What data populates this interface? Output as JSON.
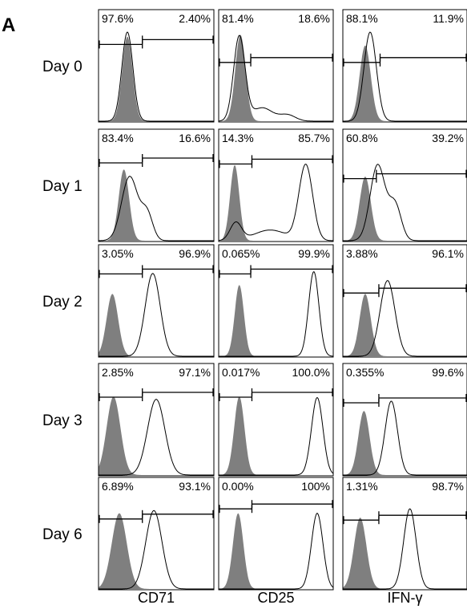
{
  "figure": {
    "panel_letter": "A",
    "rows": [
      "Day 0",
      "Day 1",
      "Day 2",
      "Day 3",
      "Day 6"
    ],
    "columns": [
      "CD71",
      "CD25",
      "IFN-γ"
    ]
  },
  "chart_data": {
    "type": "area",
    "title": "",
    "rows": [
      "Day 0",
      "Day 1",
      "Day 2",
      "Day 3",
      "Day 6"
    ],
    "columns": [
      "CD71",
      "CD25",
      "IFN-γ"
    ],
    "panels": [
      {
        "row": "Day 0",
        "column": "CD71",
        "left_percent": "97.6%",
        "right_percent": "2.40%",
        "gate_y": 0.31,
        "gate_split": 0.38,
        "control": {
          "mu": 0.25,
          "sigma": 0.045,
          "h": 0.95
        },
        "stained": [
          {
            "mu": 0.25,
            "sigma": 0.048,
            "h": 1.0
          }
        ]
      },
      {
        "row": "Day 0",
        "column": "CD25",
        "left_percent": "81.4%",
        "right_percent": "18.6%",
        "gate_y": 0.47,
        "gate_split": 0.28,
        "control": {
          "mu": 0.19,
          "sigma": 0.045,
          "h": 0.97
        },
        "stained": [
          {
            "mu": 0.18,
            "sigma": 0.05,
            "h": 0.95
          },
          {
            "mu": 0.38,
            "sigma": 0.09,
            "h": 0.15
          },
          {
            "mu": 0.6,
            "sigma": 0.07,
            "h": 0.07
          }
        ]
      },
      {
        "row": "Day 0",
        "column": "IFN-γ",
        "left_percent": "88.1%",
        "right_percent": "11.9%",
        "gate_y": 0.47,
        "gate_split": 0.3,
        "control": {
          "mu": 0.18,
          "sigma": 0.045,
          "h": 0.85
        },
        "stained": [
          {
            "mu": 0.22,
            "sigma": 0.05,
            "h": 1.0
          }
        ]
      },
      {
        "row": "Day 1",
        "column": "CD71",
        "left_percent": "83.4%",
        "right_percent": "16.6%",
        "gate_y": 0.3,
        "gate_split": 0.38,
        "control": {
          "mu": 0.22,
          "sigma": 0.045,
          "h": 0.8
        },
        "stained": [
          {
            "mu": 0.27,
            "sigma": 0.07,
            "h": 0.72
          },
          {
            "mu": 0.42,
            "sigma": 0.05,
            "h": 0.3
          }
        ]
      },
      {
        "row": "Day 1",
        "column": "CD25",
        "left_percent": "14.3%",
        "right_percent": "85.7%",
        "gate_y": 0.31,
        "gate_split": 0.29,
        "control": {
          "mu": 0.14,
          "sigma": 0.04,
          "h": 0.85
        },
        "stained": [
          {
            "mu": 0.15,
            "sigma": 0.05,
            "h": 0.2
          },
          {
            "mu": 0.45,
            "sigma": 0.14,
            "h": 0.12
          },
          {
            "mu": 0.76,
            "sigma": 0.06,
            "h": 0.85
          }
        ]
      },
      {
        "row": "Day 1",
        "column": "IFN-γ",
        "left_percent": "60.8%",
        "right_percent": "39.2%",
        "gate_y": 0.44,
        "gate_split": 0.27,
        "control": {
          "mu": 0.18,
          "sigma": 0.045,
          "h": 0.72
        },
        "stained": [
          {
            "mu": 0.28,
            "sigma": 0.06,
            "h": 0.85
          },
          {
            "mu": 0.42,
            "sigma": 0.05,
            "h": 0.4
          }
        ]
      },
      {
        "row": "Day 2",
        "column": "CD71",
        "left_percent": "3.05%",
        "right_percent": "96.9%",
        "gate_y": 0.26,
        "gate_split": 0.38,
        "control": {
          "mu": 0.12,
          "sigma": 0.05,
          "h": 0.7
        },
        "stained": [
          {
            "mu": 0.47,
            "sigma": 0.065,
            "h": 0.93
          }
        ]
      },
      {
        "row": "Day 2",
        "column": "CD25",
        "left_percent": "0.065%",
        "right_percent": "99.9%",
        "gate_y": 0.26,
        "gate_split": 0.28,
        "control": {
          "mu": 0.18,
          "sigma": 0.04,
          "h": 0.8
        },
        "stained": [
          {
            "mu": 0.83,
            "sigma": 0.045,
            "h": 0.95
          }
        ]
      },
      {
        "row": "Day 2",
        "column": "IFN-γ",
        "left_percent": "3.88%",
        "right_percent": "96.1%",
        "gate_y": 0.43,
        "gate_split": 0.29,
        "control": {
          "mu": 0.18,
          "sigma": 0.045,
          "h": 0.7
        },
        "stained": [
          {
            "mu": 0.36,
            "sigma": 0.06,
            "h": 0.85
          }
        ]
      },
      {
        "row": "Day 3",
        "column": "CD71",
        "left_percent": "2.85%",
        "right_percent": "97.1%",
        "gate_y": 0.3,
        "gate_split": 0.38,
        "control": {
          "mu": 0.13,
          "sigma": 0.06,
          "h": 0.88
        },
        "stained": [
          {
            "mu": 0.5,
            "sigma": 0.075,
            "h": 0.85
          }
        ]
      },
      {
        "row": "Day 3",
        "column": "CD25",
        "left_percent": "0.017%",
        "right_percent": "100.0%",
        "gate_y": 0.3,
        "gate_split": 0.29,
        "control": {
          "mu": 0.18,
          "sigma": 0.045,
          "h": 0.88
        },
        "stained": [
          {
            "mu": 0.86,
            "sigma": 0.05,
            "h": 0.87
          }
        ]
      },
      {
        "row": "Day 3",
        "column": "IFN-γ",
        "left_percent": "0.355%",
        "right_percent": "99.6%",
        "gate_y": 0.35,
        "gate_split": 0.29,
        "control": {
          "mu": 0.17,
          "sigma": 0.045,
          "h": 0.72
        },
        "stained": [
          {
            "mu": 0.39,
            "sigma": 0.05,
            "h": 0.83
          }
        ]
      },
      {
        "row": "Day 6",
        "column": "CD71",
        "left_percent": "6.89%",
        "right_percent": "93.1%",
        "gate_y": 0.37,
        "gate_split": 0.38,
        "control": {
          "mu": 0.18,
          "sigma": 0.065,
          "h": 0.85
        },
        "stained": [
          {
            "mu": 0.48,
            "sigma": 0.07,
            "h": 0.88
          }
        ]
      },
      {
        "row": "Day 6",
        "column": "CD25",
        "left_percent": "0.00%",
        "right_percent": "100%",
        "gate_y": 0.28,
        "gate_split": 0.29,
        "control": {
          "mu": 0.17,
          "sigma": 0.045,
          "h": 0.85
        },
        "stained": [
          {
            "mu": 0.86,
            "sigma": 0.05,
            "h": 0.85
          }
        ]
      },
      {
        "row": "Day 6",
        "column": "IFN-γ",
        "left_percent": "1.31%",
        "right_percent": "98.7%",
        "gate_y": 0.38,
        "gate_split": 0.29,
        "control": {
          "mu": 0.14,
          "sigma": 0.05,
          "h": 0.8
        },
        "stained": [
          {
            "mu": 0.54,
            "sigma": 0.05,
            "h": 0.9
          }
        ]
      }
    ],
    "control_fill": "#7f7f7f",
    "stained_stroke": "#000000",
    "background": "#ffffff"
  }
}
